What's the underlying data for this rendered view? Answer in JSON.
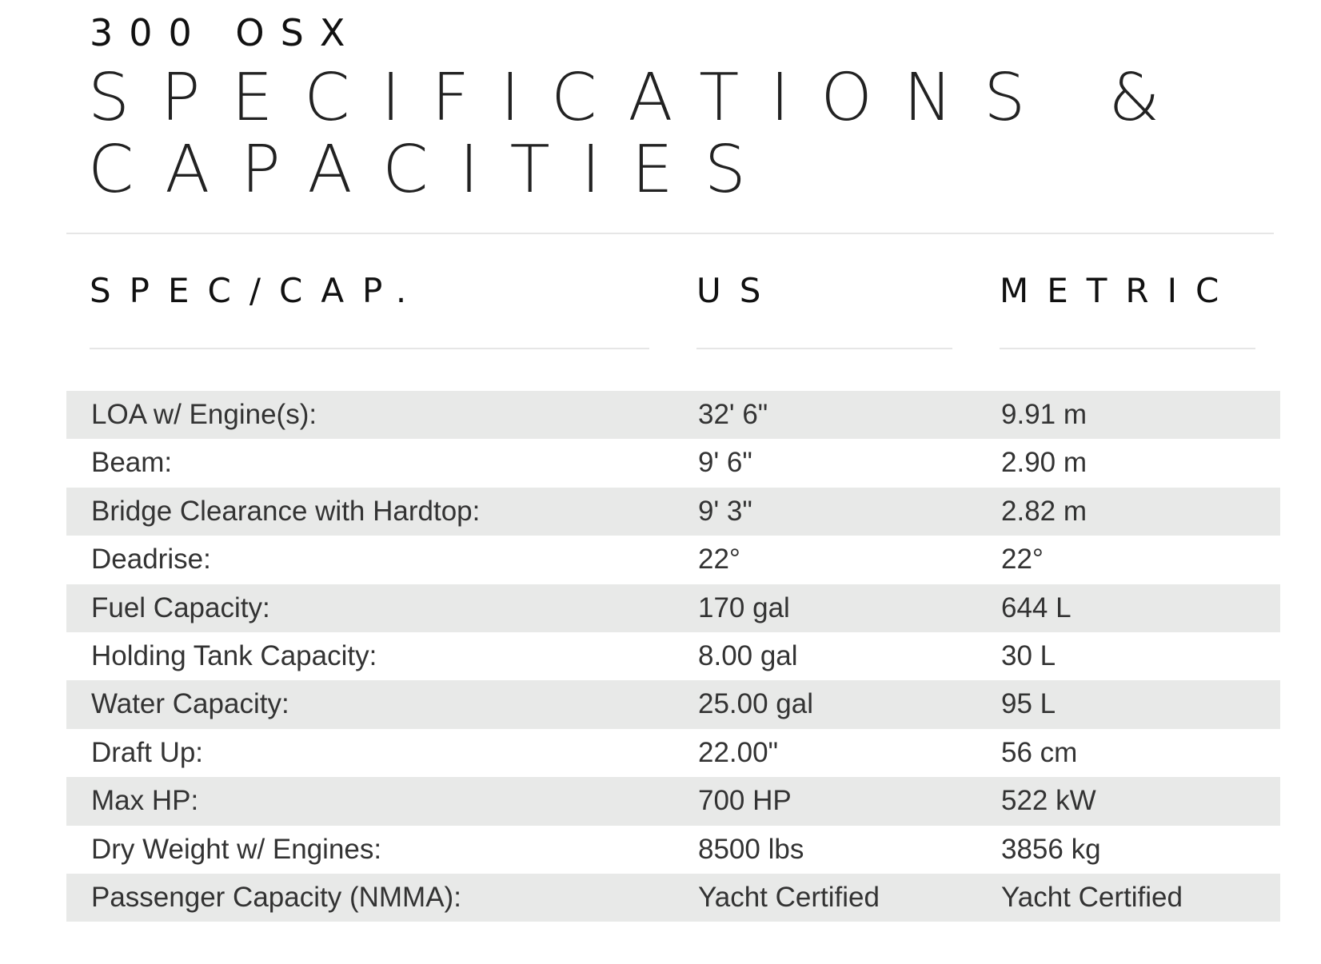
{
  "header": {
    "model": "300 OSX",
    "title_line1": "SPECIFICATIONS &",
    "title_line2": "CAPACITIES"
  },
  "columns": {
    "spec": "SPEC/CAP.",
    "us": "US",
    "metric": "METRIC"
  },
  "rows": [
    {
      "label": "LOA w/ Engine(s):",
      "us": "32' 6\"",
      "metric": "9.91 m"
    },
    {
      "label": "Beam:",
      "us": "9' 6\"",
      "metric": "2.90 m"
    },
    {
      "label": "Bridge Clearance with Hardtop:",
      "us": "9' 3\"",
      "metric": "2.82 m"
    },
    {
      "label": "Deadrise:",
      "us": "22°",
      "metric": "22°"
    },
    {
      "label": "Fuel Capacity:",
      "us": "170 gal",
      "metric": "644 L"
    },
    {
      "label": "Holding Tank Capacity:",
      "us": "8.00 gal",
      "metric": "30 L"
    },
    {
      "label": "Water Capacity:",
      "us": "25.00 gal",
      "metric": "95 L"
    },
    {
      "label": "Draft Up:",
      "us": "22.00\"",
      "metric": "56 cm"
    },
    {
      "label": "Max HP:",
      "us": "700 HP",
      "metric": "522 kW"
    },
    {
      "label": "Dry Weight w/ Engines:",
      "us": "8500 lbs",
      "metric": "3856 kg"
    },
    {
      "label": "Passenger Capacity (NMMA):",
      "us": "Yacht Certified",
      "metric": "Yacht Certified"
    }
  ],
  "colors": {
    "shade": "#e8e9e8",
    "text": "#333333",
    "rule": "#e6e6e6"
  }
}
